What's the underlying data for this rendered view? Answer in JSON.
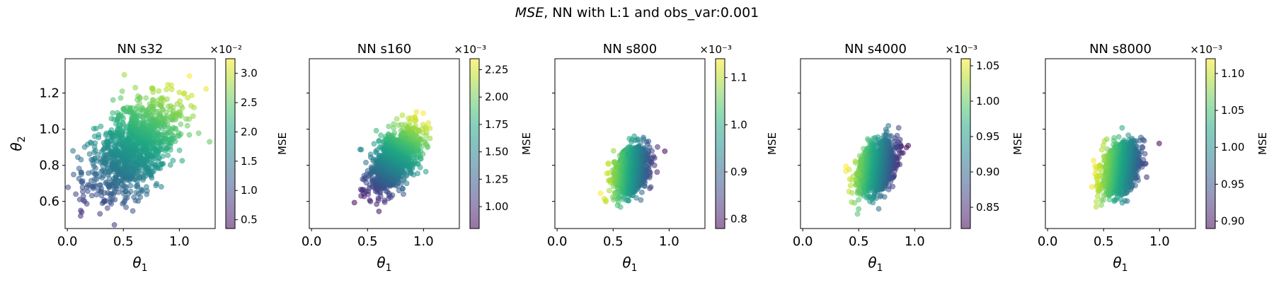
{
  "figure": {
    "suptitle_italic": "MSE",
    "suptitle_rest": ", NN with L:1 and obs_var:0.001"
  },
  "chart_data": [
    {
      "type": "scatter",
      "title": "NN s32",
      "xlabel": "θ1",
      "ylabel": "θ2",
      "xlim": [
        -0.02,
        1.32
      ],
      "ylim": [
        0.45,
        1.39
      ],
      "xticks": [
        "0.0",
        "0.5",
        "1.0"
      ],
      "yticks": [
        "0.6",
        "0.8",
        "1.0",
        "1.2"
      ],
      "show_yticklabels": true,
      "colorbar": {
        "label": "MSE",
        "exponent": "×10⁻²",
        "range": [
          0.35,
          3.25
        ],
        "ticks": [
          "0.5",
          "1.0",
          "1.5",
          "2.0",
          "2.5",
          "3.0"
        ]
      },
      "cloud": {
        "center": [
          0.6,
          0.9
        ],
        "spread": [
          0.2,
          0.14
        ],
        "correlation": 0.55,
        "color_gradient_direction": [
          0.45,
          1.0
        ],
        "outliers": [
          {
            "x": 0.05,
            "y": 0.88
          },
          {
            "x": 0.12,
            "y": 0.55
          },
          {
            "x": 1.27,
            "y": 0.93
          },
          {
            "x": 0.42,
            "y": 0.47
          }
        ]
      }
    },
    {
      "type": "scatter",
      "title": "NN s160",
      "xlabel": "θ1",
      "ylabel": "",
      "xlim": [
        -0.02,
        1.32
      ],
      "ylim": [
        0.45,
        1.39
      ],
      "xticks": [
        "0.0",
        "0.5",
        "1.0"
      ],
      "yticks": [
        "0.6",
        "0.8",
        "1.0",
        "1.2"
      ],
      "show_yticklabels": false,
      "colorbar": {
        "label": "MSE",
        "exponent": "×10⁻³",
        "range": [
          0.8,
          2.35
        ],
        "ticks": [
          "1.00",
          "1.25",
          "1.50",
          "1.75",
          "2.00",
          "2.25"
        ]
      },
      "cloud": {
        "center": [
          0.74,
          0.83
        ],
        "spread": [
          0.11,
          0.085
        ],
        "correlation": 0.55,
        "color_gradient_direction": [
          0.45,
          1.0
        ],
        "outliers": [
          {
            "x": 0.85,
            "y": 0.7
          },
          {
            "x": 0.45,
            "y": 0.66
          }
        ]
      }
    },
    {
      "type": "scatter",
      "title": "NN s800",
      "xlabel": "θ1",
      "ylabel": "",
      "xlim": [
        -0.02,
        1.32
      ],
      "ylim": [
        0.45,
        1.39
      ],
      "xticks": [
        "0.0",
        "0.5",
        "1.0"
      ],
      "yticks": [
        "0.6",
        "0.8",
        "1.0",
        "1.2"
      ],
      "show_yticklabels": false,
      "colorbar": {
        "label": "MSE",
        "exponent": "×10⁻³",
        "range": [
          0.78,
          1.14
        ],
        "ticks": [
          "0.8",
          "0.9",
          "1.0",
          "1.1"
        ]
      },
      "cloud": {
        "center": [
          0.66,
          0.77
        ],
        "spread": [
          0.075,
          0.065
        ],
        "correlation": 0.35,
        "color_gradient_direction": [
          -1.0,
          0.1
        ],
        "outliers": []
      }
    },
    {
      "type": "scatter",
      "title": "NN s4000",
      "xlabel": "θ1",
      "ylabel": "",
      "xlim": [
        -0.02,
        1.32
      ],
      "ylim": [
        0.45,
        1.39
      ],
      "xticks": [
        "0.0",
        "0.5",
        "1.0"
      ],
      "yticks": [
        "0.6",
        "0.8",
        "1.0",
        "1.2"
      ],
      "show_yticklabels": false,
      "colorbar": {
        "label": "MSE",
        "exponent": "×10⁻³",
        "range": [
          0.82,
          1.06
        ],
        "ticks": [
          "0.85",
          "0.90",
          "0.95",
          "1.00",
          "1.05"
        ]
      },
      "cloud": {
        "center": [
          0.66,
          0.79
        ],
        "spread": [
          0.085,
          0.07
        ],
        "correlation": 0.35,
        "color_gradient_direction": [
          -1.0,
          0.15
        ],
        "outliers": []
      }
    },
    {
      "type": "scatter",
      "title": "NN s8000",
      "xlabel": "θ1",
      "ylabel": "",
      "xlim": [
        -0.02,
        1.32
      ],
      "ylim": [
        0.45,
        1.39
      ],
      "xticks": [
        "0.0",
        "0.5",
        "1.0"
      ],
      "yticks": [
        "0.6",
        "0.8",
        "1.0",
        "1.2"
      ],
      "show_yticklabels": false,
      "colorbar": {
        "label": "MSE",
        "exponent": "×10⁻³",
        "range": [
          0.89,
          1.12
        ],
        "ticks": [
          "0.90",
          "0.95",
          "1.00",
          "1.05",
          "1.10"
        ]
      },
      "cloud": {
        "center": [
          0.65,
          0.78
        ],
        "spread": [
          0.085,
          0.07
        ],
        "correlation": 0.35,
        "color_gradient_direction": [
          -1.0,
          0.15
        ],
        "outliers": []
      }
    }
  ]
}
